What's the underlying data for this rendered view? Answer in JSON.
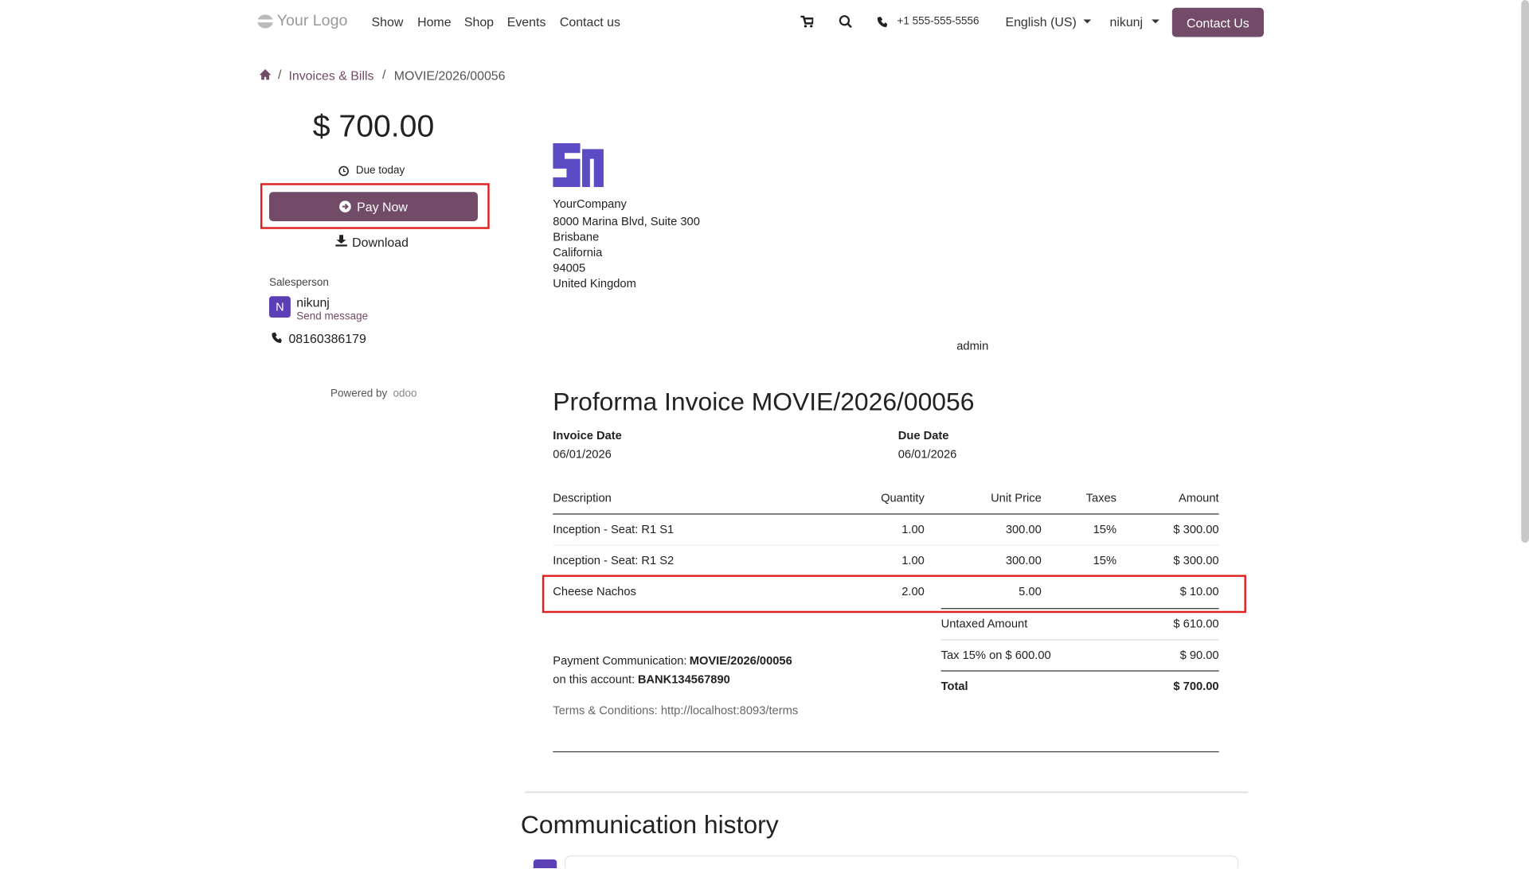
{
  "nav": {
    "logo": "Your Logo",
    "links": [
      "Show",
      "Home",
      "Shop",
      "Events",
      "Contact us"
    ],
    "phone": "+1 555-555-5556",
    "language": "English (US)",
    "user": "nikunj",
    "cta": "Contact Us"
  },
  "breadcrumb": [
    "Invoices & Bills",
    "MOVIE/2026/00056"
  ],
  "sidebar": {
    "amount": "$ 700.00",
    "due": "Due today",
    "pay": "Pay Now",
    "download": "Download",
    "salesperson_label": "Salesperson",
    "initial": "N",
    "salesperson_name": "nikunj",
    "send_message": "Send message",
    "phone": "08160386179",
    "powered": "Powered by",
    "brand": "odoo"
  },
  "invoice": {
    "company": [
      "YourCompany",
      "8000 Marina Blvd, Suite 300",
      "Brisbane",
      "California",
      "94005",
      "United Kingdom"
    ],
    "admin": "admin",
    "title": "Proforma Invoice MOVIE/2026/00056",
    "invoice_date_label": "Invoice Date",
    "invoice_date": "06/01/2026",
    "due_date_label": "Due Date",
    "due_date": "06/01/2026",
    "table": {
      "headers": [
        "Description",
        "Quantity",
        "Unit Price",
        "Taxes",
        "Amount"
      ],
      "rows": [
        [
          "Inception - Seat: R1 S1",
          "1.00",
          "300.00",
          "15%",
          "$ 300.00"
        ],
        [
          "Inception - Seat: R1 S2",
          "1.00",
          "300.00",
          "15%",
          "$ 300.00"
        ],
        [
          "Cheese Nachos",
          "2.00",
          "5.00",
          null,
          "$ 10.00"
        ]
      ]
    },
    "totals": [
      [
        "Untaxed Amount",
        "$ 610.00"
      ],
      [
        "Tax 15% on $ 600.00",
        "$ 90.00"
      ],
      [
        "Total",
        "$ 700.00"
      ]
    ],
    "payment_label": "Payment Communication:",
    "payment_value": "MOVIE/2026/00056",
    "account_label": "on this account:",
    "account_value": "BANK134567890",
    "terms": "Terms & Conditions: http://localhost:8093/terms"
  },
  "communication_history": "Communication history"
}
